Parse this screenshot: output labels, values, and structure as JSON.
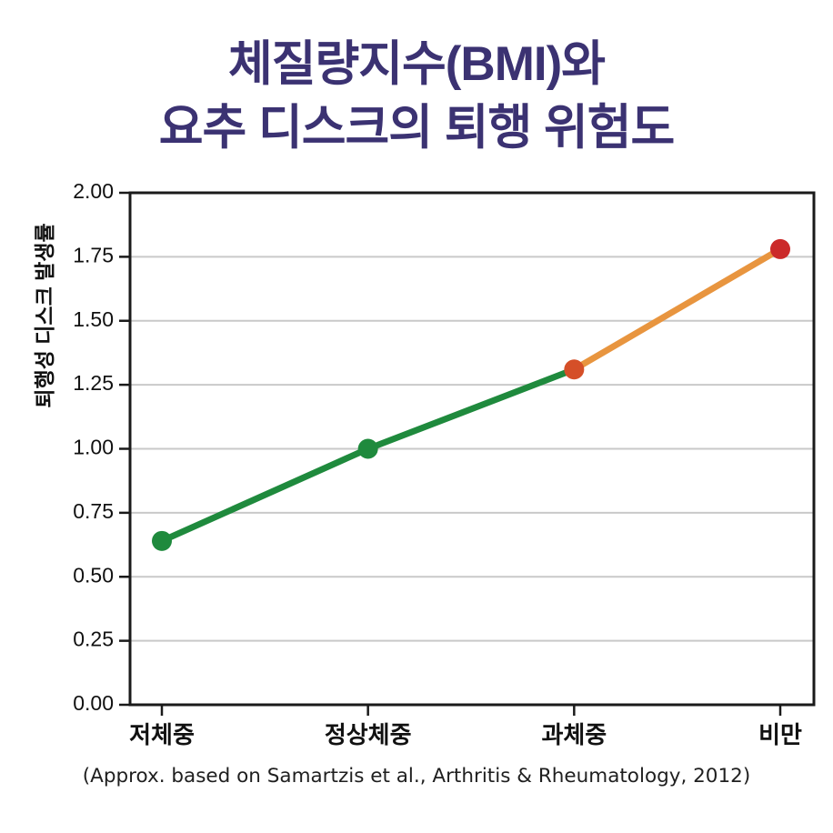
{
  "title": {
    "line1": "체질량지수(BMI)와",
    "line2": "요추 디스크의 퇴행 위험도"
  },
  "caption": "(Approx. based on Samartzis et al., Arthritis & Rheumatology, 2012)",
  "colors": {
    "title": "#3b3272",
    "axis": "#1a1a1a",
    "grid": "#c9c9c9",
    "tick_label": "#111111",
    "green": "#1f8a3d",
    "orange": "#e8953f",
    "red_orange": "#d54f28",
    "red": "#cb2a2a"
  },
  "chart_data": {
    "type": "line",
    "categories": [
      "저체중",
      "정상체중",
      "과체중",
      "비만"
    ],
    "values": [
      0.64,
      1.0,
      1.31,
      1.78
    ],
    "title": "체질량지수(BMI)와 요추 디스크의 퇴행 위험도",
    "xlabel": "",
    "ylabel": "퇴행성 디스크 발생률",
    "ylim": [
      0.0,
      2.0
    ],
    "ytick_labels": [
      "0.00",
      "0.25",
      "0.50",
      "0.75",
      "1.00",
      "1.25",
      "1.50",
      "1.75",
      "2.00"
    ],
    "grid": "horizontal-only",
    "legend": "none",
    "segments": [
      {
        "from": 0,
        "to": 2,
        "color_key": "green"
      },
      {
        "from": 2,
        "to": 3,
        "color_key": "orange"
      }
    ],
    "marker_color_keys": [
      "green",
      "green",
      "red_orange",
      "red"
    ]
  }
}
